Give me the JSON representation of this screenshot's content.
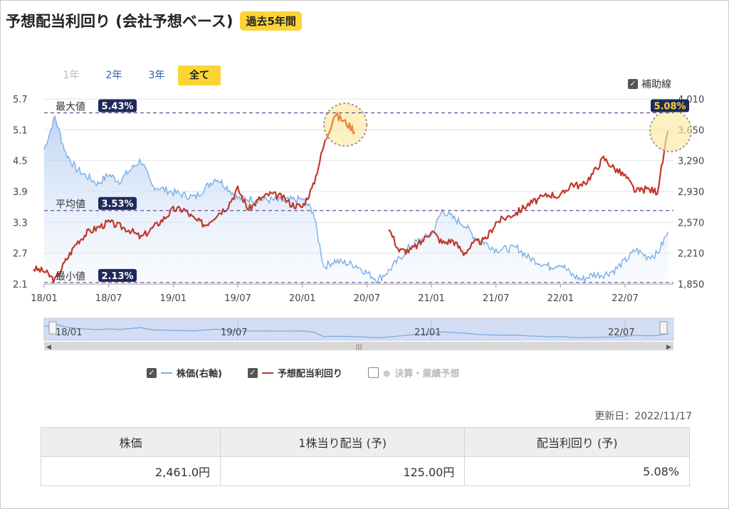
{
  "header": {
    "title": "予想配当利回り (会社予想ベース)",
    "badge": "過去5年間"
  },
  "period_tabs": [
    {
      "label": "1年",
      "state": "disabled"
    },
    {
      "label": "2年",
      "state": "normal"
    },
    {
      "label": "3年",
      "state": "normal"
    },
    {
      "label": "全て",
      "state": "active"
    }
  ],
  "aux_toggle": {
    "label": "補助線",
    "checked": true
  },
  "chart_data": {
    "type": "line",
    "left_axis": {
      "ticks": [
        "5.7",
        "5.1",
        "4.5",
        "3.9",
        "3.3",
        "2.7",
        "2.1"
      ],
      "ylim": [
        2.1,
        5.7
      ],
      "unit": "%"
    },
    "right_axis": {
      "ticks": [
        "4,010",
        "3,650",
        "3,290",
        "2,930",
        "2,570",
        "2,210",
        "1,850"
      ],
      "ylim": [
        1850,
        4010
      ]
    },
    "x_ticks": [
      "18/01",
      "18/07",
      "19/01",
      "19/07",
      "20/01",
      "20/07",
      "21/01",
      "21/07",
      "22/01",
      "22/07"
    ],
    "reference_lines": [
      {
        "label": "最大値",
        "value": 5.43,
        "badge": "5.43%"
      },
      {
        "label": "平均値",
        "value": 3.53,
        "badge": "3.53%"
      },
      {
        "label": "最小値",
        "value": 2.13,
        "badge": "2.13%"
      }
    ],
    "latest_badge": "5.08%",
    "series": [
      {
        "name": "株価(右軸)",
        "color": "#7aaee6",
        "axis": "right",
        "points": [
          [
            "18/01",
            3420
          ],
          [
            "18/02",
            3800
          ],
          [
            "18/03",
            3380
          ],
          [
            "18/04",
            3190
          ],
          [
            "18/06",
            3020
          ],
          [
            "18/07",
            3130
          ],
          [
            "18/08",
            3050
          ],
          [
            "18/09",
            3180
          ],
          [
            "18/10",
            3300
          ],
          [
            "18/11",
            3000
          ],
          [
            "19/01",
            2920
          ],
          [
            "19/03",
            2860
          ],
          [
            "19/05",
            3090
          ],
          [
            "19/06",
            2980
          ],
          [
            "19/07",
            2850
          ],
          [
            "19/09",
            2840
          ],
          [
            "19/11",
            2820
          ],
          [
            "20/01",
            2840
          ],
          [
            "20/02",
            2700
          ],
          [
            "20/03",
            2050
          ],
          [
            "20/04",
            2120
          ],
          [
            "20/06",
            2070
          ],
          [
            "20/07",
            1980
          ],
          [
            "20/08",
            1900
          ],
          [
            "20/09",
            2000
          ],
          [
            "20/10",
            2140
          ],
          [
            "20/11",
            2290
          ],
          [
            "20/12",
            2370
          ],
          [
            "21/01",
            2420
          ],
          [
            "21/02",
            2710
          ],
          [
            "21/03",
            2620
          ],
          [
            "21/04",
            2550
          ],
          [
            "21/05",
            2400
          ],
          [
            "21/06",
            2330
          ],
          [
            "21/07",
            2250
          ],
          [
            "21/09",
            2270
          ],
          [
            "21/10",
            2160
          ],
          [
            "21/12",
            2050
          ],
          [
            "22/01",
            2090
          ],
          [
            "22/02",
            1960
          ],
          [
            "22/03",
            1900
          ],
          [
            "22/04",
            1960
          ],
          [
            "22/05",
            1960
          ],
          [
            "22/06",
            2010
          ],
          [
            "22/07",
            2120
          ],
          [
            "22/08",
            2250
          ],
          [
            "22/09",
            2170
          ],
          [
            "22/10",
            2200
          ],
          [
            "22/11",
            2461
          ]
        ]
      },
      {
        "name": "予想配当利回り",
        "color": "#c0392b",
        "axis": "left",
        "points": [
          [
            "17/12",
            2.4
          ],
          [
            "18/01",
            2.35
          ],
          [
            "18/02",
            2.17
          ],
          [
            "18/03",
            2.55
          ],
          [
            "18/04",
            2.9
          ],
          [
            "18/05",
            3.1
          ],
          [
            "18/07",
            3.3
          ],
          [
            "18/09",
            3.15
          ],
          [
            "18/10",
            3.0
          ],
          [
            "18/12",
            3.35
          ],
          [
            "19/01",
            3.55
          ],
          [
            "19/02",
            3.55
          ],
          [
            "19/03",
            3.35
          ],
          [
            "19/04",
            3.25
          ],
          [
            "19/05",
            3.45
          ],
          [
            "19/06",
            3.6
          ],
          [
            "19/07",
            3.95
          ],
          [
            "19/08",
            3.55
          ],
          [
            "19/09",
            3.75
          ],
          [
            "19/10",
            3.85
          ],
          [
            "19/11",
            3.8
          ],
          [
            "19/12",
            3.65
          ],
          [
            "20/01",
            3.6
          ],
          [
            "20/02",
            4.0
          ],
          [
            "20/03",
            4.8
          ],
          [
            "20/04",
            5.4
          ],
          [
            "20/05",
            5.25
          ],
          [
            "20/06",
            5.05
          ],
          null,
          [
            "20/09",
            3.2
          ],
          [
            "20/10",
            2.75
          ],
          [
            "20/11",
            2.75
          ],
          [
            "20/12",
            2.9
          ],
          [
            "21/01",
            3.15
          ],
          [
            "21/02",
            2.9
          ],
          [
            "21/03",
            2.95
          ],
          [
            "21/04",
            2.7
          ],
          [
            "21/05",
            2.9
          ],
          [
            "21/06",
            2.95
          ],
          [
            "21/07",
            3.3
          ],
          [
            "21/08",
            3.4
          ],
          [
            "21/09",
            3.5
          ],
          [
            "21/10",
            3.65
          ],
          [
            "21/11",
            3.75
          ],
          [
            "21/12",
            3.85
          ],
          [
            "22/01",
            3.8
          ],
          [
            "22/02",
            4.05
          ],
          [
            "22/03",
            4.0
          ],
          [
            "22/04",
            4.25
          ],
          [
            "22/05",
            4.55
          ],
          [
            "22/06",
            4.35
          ],
          [
            "22/07",
            4.2
          ],
          [
            "22/08",
            3.9
          ],
          [
            "22/09",
            3.95
          ],
          [
            "22/10",
            3.9
          ],
          [
            "22/11",
            5.08
          ]
        ]
      }
    ]
  },
  "navigator": {
    "labels": [
      "18/01",
      "19/07",
      "21/01",
      "22/07"
    ]
  },
  "legend": [
    {
      "label": "株価(右軸)",
      "color": "#7aaee6",
      "checked": true
    },
    {
      "label": "予想配当利回り",
      "color": "#c0392b",
      "checked": true
    },
    {
      "label": "決算・業績予想",
      "color": "#cccccc",
      "checked": false
    }
  ],
  "updated": "更新日：2022/11/17",
  "summary": {
    "headers": [
      "株価",
      "1株当り配当 (予)",
      "配当利回り (予)"
    ],
    "values": [
      "2,461.0円",
      "125.00円",
      "5.08%"
    ]
  }
}
